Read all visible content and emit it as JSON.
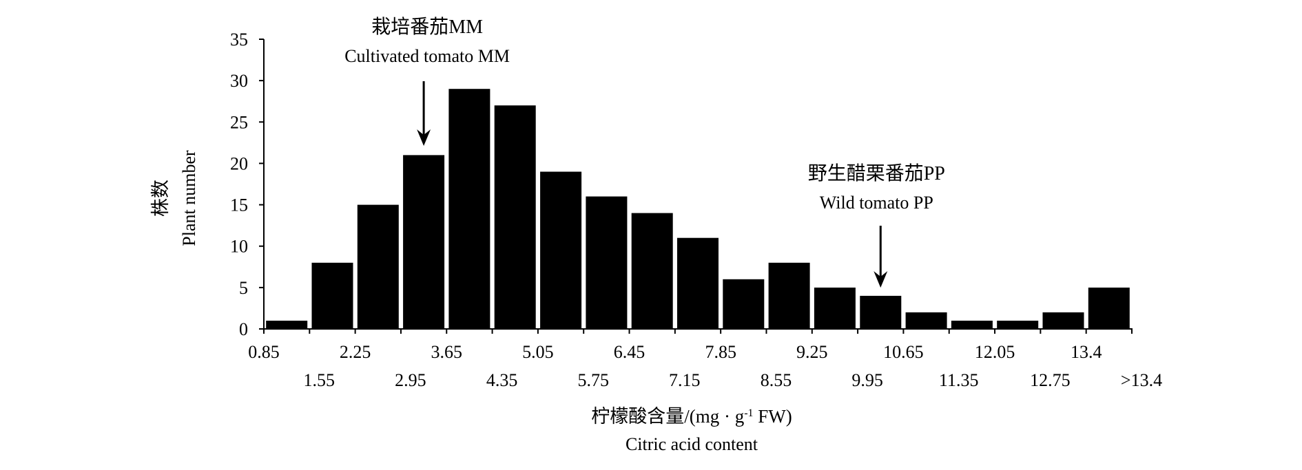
{
  "chart_data": {
    "type": "bar",
    "categories": [
      "0.85",
      "1.55",
      "2.25",
      "2.95",
      "3.65",
      "4.35",
      "5.05",
      "5.75",
      "6.45",
      "7.15",
      "7.85",
      "8.55",
      "9.25",
      "9.95",
      "10.65",
      "11.35",
      "12.05",
      "12.75",
      "13.4"
    ],
    "tick_labels": [
      "0.85",
      "1.55",
      "2.25",
      "2.95",
      "3.65",
      "4.35",
      "5.05",
      "5.75",
      "6.45",
      "7.15",
      "7.85",
      "8.55",
      "9.25",
      "9.95",
      "10.65",
      "11.35",
      "12.05",
      "12.75",
      "13.4",
      ">13.4"
    ],
    "values": [
      1,
      8,
      15,
      21,
      29,
      27,
      19,
      16,
      14,
      11,
      6,
      8,
      5,
      4,
      2,
      1,
      1,
      2,
      5
    ],
    "ylim": [
      0,
      35
    ],
    "yticks": [
      0,
      5,
      10,
      15,
      20,
      25,
      30,
      35
    ],
    "xlabel_cn": "柠檬酸含量/(mg · g",
    "xlabel_sup": "-1",
    "xlabel_tail": " FW)",
    "xlabel_en": "Citric acid content",
    "ylabel_cn": "株数",
    "ylabel_en": "Plant number",
    "bar_color": "#000000",
    "grid": false,
    "annotations": [
      {
        "label_cn": "栽培番茄MM",
        "label_en": "Cultivated tomato MM",
        "x_value": 3.3
      },
      {
        "label_cn": "野生醋栗番茄PP",
        "label_en": "Wild tomato PP",
        "x_value": 10.3
      }
    ]
  }
}
